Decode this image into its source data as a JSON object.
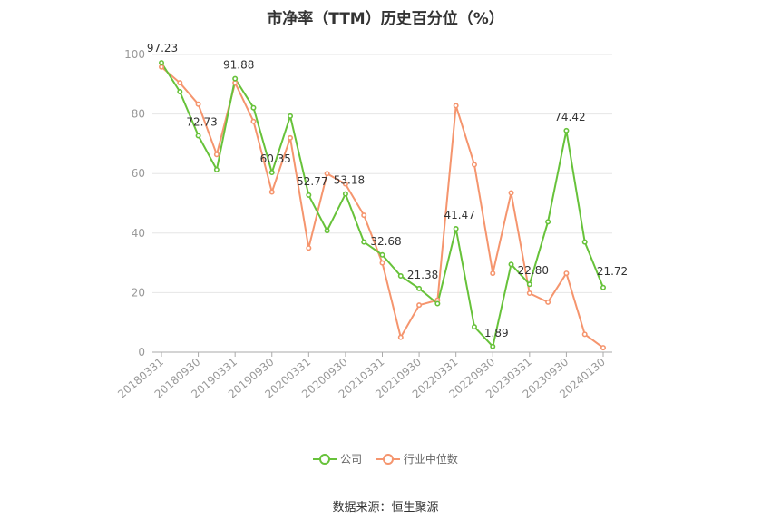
{
  "chart_data": {
    "type": "line",
    "title": "市净率（TTM）历史百分位（%）",
    "ylim": [
      0,
      100
    ],
    "yticks": [
      0,
      20,
      40,
      60,
      80,
      100
    ],
    "grid": true,
    "legend_position": "bottom",
    "x_tick_labels": [
      "20180331",
      "20180930",
      "20190331",
      "20190930",
      "20200331",
      "20200930",
      "20210331",
      "20210930",
      "20220331",
      "20220930",
      "20230331",
      "20230930",
      "20240130"
    ],
    "x": [
      "20180331",
      "20180630",
      "20180930",
      "20181231",
      "20190331",
      "20190630",
      "20190930",
      "20191231",
      "20200331",
      "20200630",
      "20200930",
      "20201231",
      "20210331",
      "20210630",
      "20210930",
      "20211231",
      "20220331",
      "20220630",
      "20220930",
      "20221231",
      "20230331",
      "20230630",
      "20230930",
      "20231231",
      "20240130"
    ],
    "series": [
      {
        "name": "公司",
        "color": "#67c23a",
        "values": [
          97.23,
          87.5,
          72.73,
          61.3,
          91.88,
          82.1,
          60.35,
          79.3,
          52.77,
          40.8,
          53.18,
          37.0,
          32.68,
          25.6,
          21.38,
          16.3,
          41.47,
          8.5,
          1.89,
          29.5,
          22.8,
          43.8,
          74.42,
          37.0,
          21.72
        ],
        "labels": [
          "97.23",
          "",
          "72.73",
          "",
          "91.88",
          "",
          "60.35",
          "",
          "52.77",
          "",
          "53.18",
          "",
          "32.68",
          "",
          "21.38",
          "",
          "41.47",
          "",
          "1.89",
          "",
          "22.80",
          "",
          "74.42",
          "",
          "21.72"
        ]
      },
      {
        "name": "行业中位数",
        "color": "#f5956e",
        "values": [
          95.8,
          90.5,
          83.3,
          66.4,
          90.5,
          77.5,
          53.8,
          72.0,
          35.0,
          60.0,
          56.5,
          46.0,
          30.0,
          5.0,
          15.8,
          17.5,
          82.8,
          63.0,
          26.5,
          53.5,
          19.8,
          16.8,
          26.5,
          6.0,
          1.5
        ]
      }
    ]
  },
  "source": "数据来源：恒生聚源"
}
